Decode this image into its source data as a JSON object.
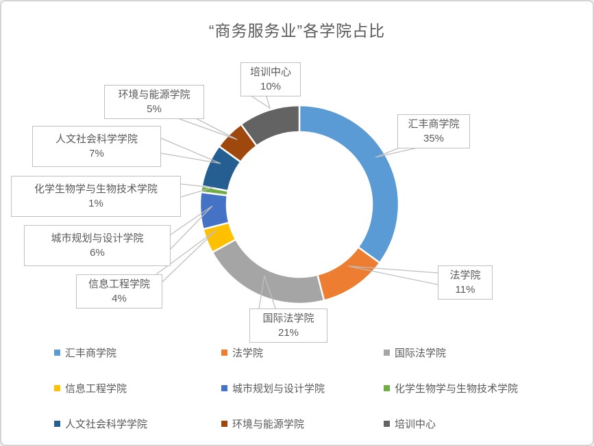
{
  "title": "“商务服务业”各学院占比",
  "chart_data": {
    "type": "pie",
    "subtype": "donut",
    "title": "“商务服务业”各学院占比",
    "unit": "%",
    "categories": [
      "汇丰商学院",
      "法学院",
      "国际法学院",
      "信息工程学院",
      "城市规划与设计学院",
      "化学生物学与生物技术学院",
      "人文社会科学学院",
      "环境与能源学院",
      "培训中心"
    ],
    "values": [
      35,
      11,
      21,
      4,
      6,
      1,
      7,
      5,
      10
    ],
    "colors": [
      "#5B9BD5",
      "#ED7D31",
      "#A5A5A5",
      "#FFC000",
      "#4472C4",
      "#70AD47",
      "#255E91",
      "#9E480E",
      "#636363"
    ],
    "data_label_format": "category-name + percent in callout boxes with leader lines",
    "legend_position": "bottom",
    "legend_rows": 3,
    "start_angle_deg": 0,
    "direction": "clockwise",
    "text_color": "#595959",
    "callout_border_color": "#BFBFBF"
  }
}
